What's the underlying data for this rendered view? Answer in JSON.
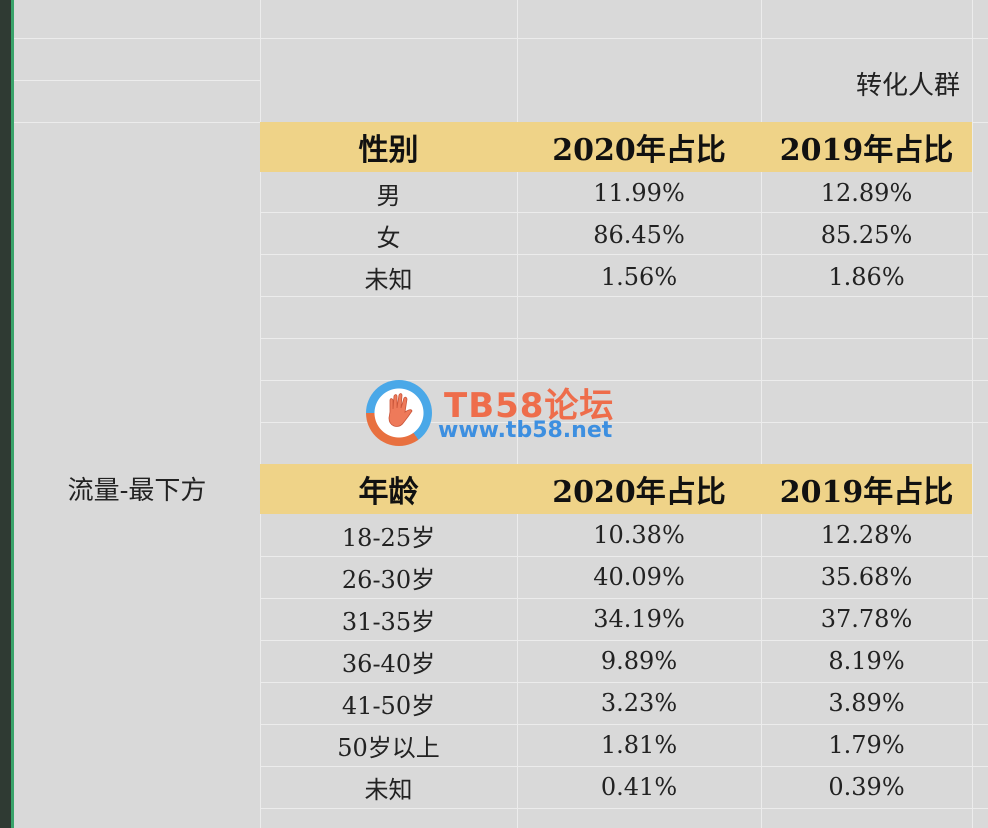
{
  "section_title": "转化人群",
  "side_label": "流量-最下方",
  "gender_table": {
    "headers": [
      "性别",
      "2020年占比",
      "2019年占比"
    ],
    "rows": [
      [
        "男",
        "11.99%",
        "12.89%"
      ],
      [
        "女",
        "86.45%",
        "85.25%"
      ],
      [
        "未知",
        "1.56%",
        "1.86%"
      ]
    ]
  },
  "age_table": {
    "headers": [
      "年龄",
      "2020年占比",
      "2019年占比"
    ],
    "rows": [
      [
        "18-25岁",
        "10.38%",
        "12.28%"
      ],
      [
        "26-30岁",
        "40.09%",
        "35.68%"
      ],
      [
        "31-35岁",
        "34.19%",
        "37.78%"
      ],
      [
        "36-40岁",
        "9.89%",
        "8.19%"
      ],
      [
        "41-50岁",
        "3.23%",
        "3.89%"
      ],
      [
        "50岁以上",
        "1.81%",
        "1.79%"
      ],
      [
        "未知",
        "0.41%",
        "0.39%"
      ]
    ]
  },
  "watermark": {
    "title": "TB58论坛",
    "url": "www.tb58.net",
    "icon": "hand-logo-icon"
  },
  "colors": {
    "header_fill": "#efd388",
    "sheet_bg": "#d9d9d9",
    "watermark_orange": "#ee6d4b",
    "watermark_blue": "#3d8fe0"
  }
}
